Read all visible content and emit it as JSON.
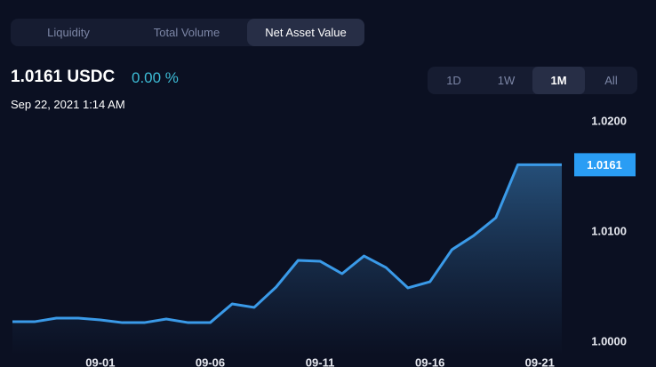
{
  "tabs": [
    "Liquidity",
    "Total Volume",
    "Net Asset Value"
  ],
  "header": {
    "price": "1.0161 USDC",
    "change": "0.00 %",
    "timestamp": "Sep 22, 2021 1:14 AM"
  },
  "ranges": [
    "1D",
    "1W",
    "1M",
    "All"
  ],
  "chart_data": {
    "type": "area",
    "categories": [
      null,
      null,
      null,
      null,
      "09-01",
      null,
      null,
      null,
      null,
      "09-06",
      null,
      null,
      null,
      null,
      "09-11",
      null,
      null,
      null,
      null,
      "09-16",
      null,
      null,
      null,
      null,
      "09-21",
      null
    ],
    "series": [
      {
        "name": "Net Asset Value",
        "color": "#3a9ae8",
        "values": [
          1.00185,
          1.00185,
          1.00218,
          1.00218,
          1.00202,
          1.00177,
          1.00177,
          1.0021,
          1.00177,
          1.00177,
          1.00347,
          1.00315,
          1.005,
          1.00742,
          1.00734,
          1.00621,
          1.00782,
          1.00677,
          1.00492,
          1.00548,
          1.00839,
          1.00968,
          1.01129,
          1.0161,
          1.0161,
          1.0161
        ]
      }
    ],
    "ylim": [
      1.0,
      1.02
    ],
    "yticks": [
      {
        "value": 1.0,
        "label": "1.0000"
      },
      {
        "value": 1.01,
        "label": "1.0100"
      },
      {
        "value": 1.02,
        "label": "1.0200"
      }
    ]
  }
}
